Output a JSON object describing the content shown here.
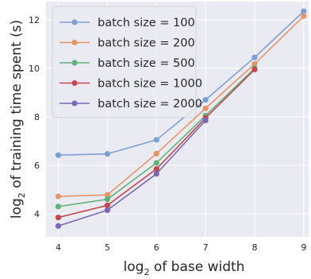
{
  "chart_data": {
    "type": "line",
    "xlabel": {
      "prefix": "log",
      "sub": "2",
      "suffix": " of base width"
    },
    "ylabel": {
      "prefix": "log",
      "sub": "2",
      "suffix": " of training time spent (s)"
    },
    "x": [
      4,
      5,
      6,
      7,
      8,
      9
    ],
    "xticks": [
      4,
      5,
      6,
      7,
      8,
      9
    ],
    "yticks": [
      4,
      6,
      8,
      10,
      12
    ],
    "xlim": [
      3.75,
      9.1
    ],
    "ylim": [
      3.05,
      12.75
    ],
    "grid": true,
    "legend_position": "top-left",
    "series": [
      {
        "name": "batch size = 100",
        "color": "#7e9fd6",
        "values": [
          6.42,
          6.47,
          7.05,
          8.7,
          10.45,
          12.35
        ]
      },
      {
        "name": "batch size = 200",
        "color": "#e6946a",
        "values": [
          4.72,
          4.78,
          6.48,
          8.35,
          10.18,
          12.15
        ]
      },
      {
        "name": "batch size = 500",
        "color": "#62b37a",
        "values": [
          4.3,
          4.6,
          6.1,
          8.05,
          10.0,
          null
        ]
      },
      {
        "name": "batch size = 1000",
        "color": "#c7474f",
        "values": [
          3.85,
          4.35,
          5.85,
          7.95,
          9.95,
          null
        ]
      },
      {
        "name": "batch size = 2000",
        "color": "#7b68b8",
        "values": [
          3.5,
          4.15,
          5.65,
          7.85,
          null,
          null
        ]
      }
    ]
  }
}
